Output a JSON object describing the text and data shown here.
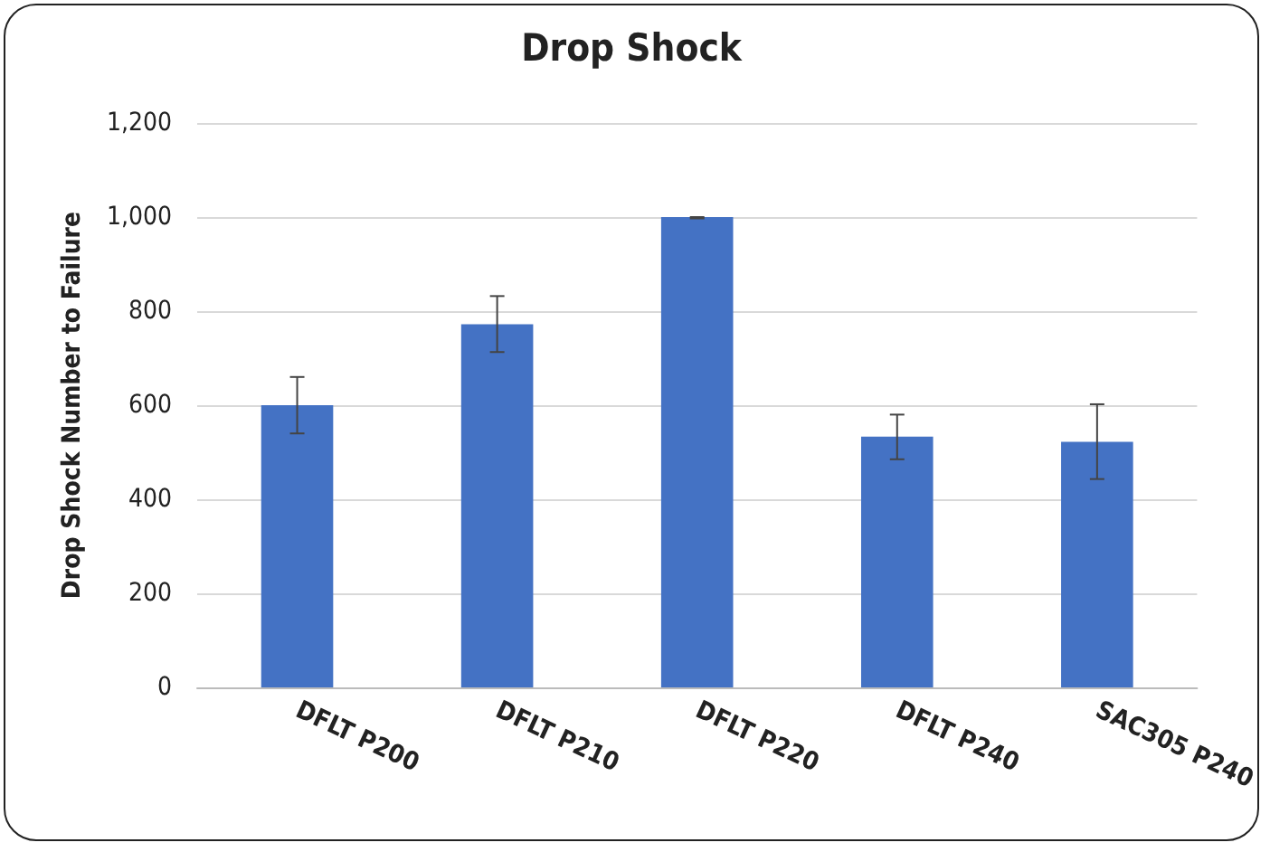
{
  "chart_data": {
    "type": "bar",
    "title": "Drop Shock",
    "ylabel": "Drop Shock Number to Failure",
    "categories": [
      "DFLT P200",
      "DFLT P210",
      "DFLT P220",
      "DFLT P240",
      "SAC305 P240"
    ],
    "values": [
      600,
      772,
      1000,
      533,
      522
    ],
    "color": "#4472c4",
    "errors": [
      [
        540,
        660
      ],
      [
        713,
        832
      ],
      [
        997,
        1000
      ],
      [
        485,
        580
      ],
      [
        443,
        602
      ]
    ],
    "ylim": [
      0,
      1200
    ],
    "yticks": [
      0,
      200,
      400,
      600,
      800,
      {
        "value": 1000,
        "label": "1,000"
      },
      {
        "value": 1200,
        "label": "1,200"
      }
    ],
    "grid": "y"
  }
}
